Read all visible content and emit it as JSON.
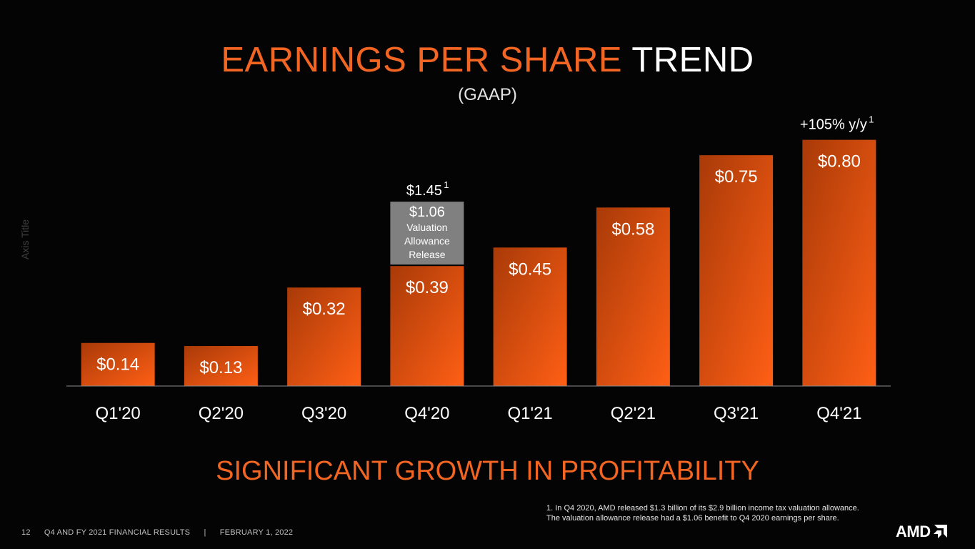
{
  "slide": {
    "title_accent": "EARNINGS PER SHARE",
    "title_plain": "TREND",
    "subtitle": "(GAAP)",
    "axis_title": "Axis Title",
    "headline": "SIGNIFICANT GROWTH IN PROFITABILITY",
    "footnote_line1": "1. In Q4 2020, AMD released $1.3 billion of its $2.9 billion income tax valuation allowance.",
    "footnote_line2": "The valuation allowance release had a $1.06 benefit to Q4 2020 earnings per share.",
    "page_number": "12",
    "footer_title": "Q4 AND FY 2021 FINANCIAL RESULTS",
    "footer_separator": "|",
    "footer_date": "FEBRUARY 1, 2022",
    "logo_text": "AMD"
  },
  "colors": {
    "accent": "#f26522",
    "bar_top": "#a93a08",
    "bar_bottom": "#ff5f15",
    "stack_gray": "#808080"
  },
  "chart_data": {
    "type": "bar",
    "categories": [
      "Q1'20",
      "Q2'20",
      "Q3'20",
      "Q4'20",
      "Q1'21",
      "Q2'21",
      "Q3'21",
      "Q4'21"
    ],
    "values": [
      0.14,
      0.13,
      0.32,
      0.39,
      0.45,
      0.58,
      0.75,
      0.8
    ],
    "value_labels": [
      "$0.14",
      "$0.13",
      "$0.32",
      "$0.39",
      "$0.45",
      "$0.58",
      "$0.75",
      "$0.80"
    ],
    "ylim": [
      0,
      0.82
    ],
    "stacked_extra": {
      "category": "Q4'20",
      "value": 1.06,
      "value_label": "$1.06",
      "label_lines": [
        "Valuation",
        "Allowance",
        "Release"
      ],
      "total_label": "$1.45",
      "total_superscript": "1"
    },
    "annotation": {
      "category": "Q4'21",
      "text": "+105% y/y",
      "superscript": "1"
    },
    "grid": false
  }
}
